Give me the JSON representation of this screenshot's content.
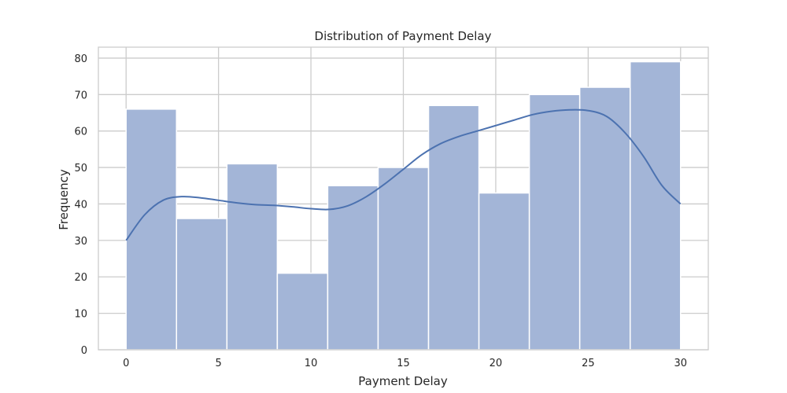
{
  "chart_data": {
    "type": "bar",
    "subtype": "histogram_with_kde",
    "title": "Distribution of Payment Delay",
    "xlabel": "Payment Delay",
    "ylabel": "Frequency",
    "xlim": [
      -1.5,
      31.5
    ],
    "ylim": [
      0,
      83
    ],
    "x_ticks": [
      0,
      5,
      10,
      15,
      20,
      25,
      30
    ],
    "y_ticks": [
      0,
      10,
      20,
      30,
      40,
      50,
      60,
      70,
      80
    ],
    "grid": true,
    "bin_edges": [
      0,
      2.727,
      5.455,
      8.182,
      10.909,
      13.636,
      16.364,
      19.091,
      21.818,
      24.545,
      27.273,
      30
    ],
    "values": [
      66,
      36,
      51,
      21,
      45,
      50,
      67,
      43,
      70,
      72,
      79
    ],
    "kde": {
      "x": [
        0,
        1,
        2,
        3,
        4,
        5,
        6,
        7,
        8,
        9,
        10,
        11,
        12,
        13,
        14,
        15,
        16,
        17,
        18,
        19,
        20,
        21,
        22,
        23,
        24,
        25,
        26,
        27,
        28,
        29,
        30
      ],
      "y": [
        30,
        37,
        41,
        42,
        41.7,
        41,
        40.3,
        39.8,
        39.6,
        39.2,
        38.7,
        38.5,
        39.5,
        42,
        45.5,
        49.5,
        53.5,
        56.5,
        58.5,
        60,
        61.5,
        63,
        64.5,
        65.4,
        65.8,
        65.6,
        64,
        59.5,
        53,
        45,
        40
      ]
    },
    "colors": {
      "bar_fill": "#a3b5d7",
      "bar_edge": "#ffffff",
      "kde_line": "#4c72b0",
      "grid": "#cccccc",
      "frame": "#cccccc",
      "text": "#262626"
    }
  }
}
